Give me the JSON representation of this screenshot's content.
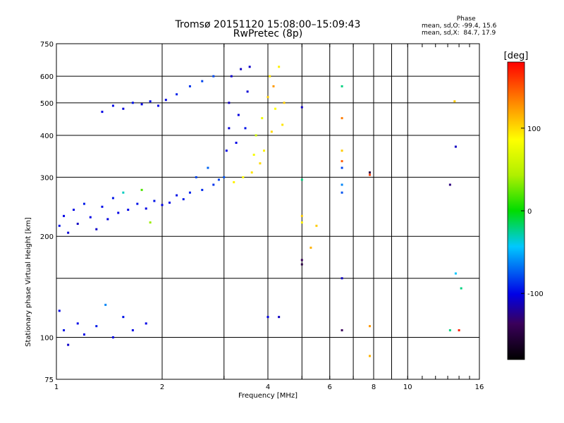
{
  "header": {
    "title_line1": "Tromsø 20151120 15:08:00–15:09:43",
    "title_line2": "RwPretec (8p)"
  },
  "phase_info": {
    "heading": "Phase",
    "line_o": "mean, sd,O: -99.4, 15.6",
    "line_x": "mean, sd,X:  84.7, 17.9"
  },
  "colorbar": {
    "unit": "[deg]",
    "ticks": [
      "100",
      "0",
      "-100"
    ],
    "tick_values": [
      100,
      0,
      -100
    ],
    "range": [
      -180,
      180
    ]
  },
  "chart_data": {
    "type": "scatter",
    "xlabel": "Frequency [MHz]",
    "ylabel": "Stationary phase Virtual Height [km]",
    "xscale": "log",
    "yscale": "log",
    "xlim": [
      1,
      16
    ],
    "ylim": [
      75,
      750
    ],
    "x_ticks": [
      1,
      2,
      4,
      6,
      8,
      10,
      16
    ],
    "x_tick_labels": [
      "1",
      "2",
      "4",
      "6",
      "8",
      "10",
      "16"
    ],
    "x_minor_ticks": [
      3,
      5,
      7,
      9
    ],
    "y_ticks": [
      75,
      100,
      200,
      300,
      400,
      500,
      600,
      750
    ],
    "y_tick_labels": [
      "75",
      "100",
      "200",
      "300",
      "400",
      "500",
      "600",
      "750"
    ],
    "y_minor_ticks": [
      150
    ],
    "grid": true,
    "points": [
      {
        "x": 1.02,
        "y": 215,
        "phase": -95
      },
      {
        "x": 1.05,
        "y": 230,
        "phase": -100
      },
      {
        "x": 1.08,
        "y": 205,
        "phase": -105
      },
      {
        "x": 1.12,
        "y": 240,
        "phase": -98
      },
      {
        "x": 1.15,
        "y": 218,
        "phase": -110
      },
      {
        "x": 1.2,
        "y": 250,
        "phase": -92
      },
      {
        "x": 1.25,
        "y": 228,
        "phase": -100
      },
      {
        "x": 1.3,
        "y": 210,
        "phase": -108
      },
      {
        "x": 1.35,
        "y": 245,
        "phase": -96
      },
      {
        "x": 1.4,
        "y": 225,
        "phase": -102
      },
      {
        "x": 1.45,
        "y": 260,
        "phase": -94
      },
      {
        "x": 1.5,
        "y": 235,
        "phase": -100
      },
      {
        "x": 1.55,
        "y": 270,
        "phase": -30
      },
      {
        "x": 1.6,
        "y": 240,
        "phase": -98
      },
      {
        "x": 1.7,
        "y": 250,
        "phase": -95
      },
      {
        "x": 1.75,
        "y": 275,
        "phase": 20
      },
      {
        "x": 1.8,
        "y": 242,
        "phase": -100
      },
      {
        "x": 1.85,
        "y": 220,
        "phase": 40
      },
      {
        "x": 1.9,
        "y": 255,
        "phase": -95
      },
      {
        "x": 2.0,
        "y": 248,
        "phase": -100
      },
      {
        "x": 2.1,
        "y": 252,
        "phase": -98
      },
      {
        "x": 2.2,
        "y": 265,
        "phase": -95
      },
      {
        "x": 2.3,
        "y": 258,
        "phase": -92
      },
      {
        "x": 2.4,
        "y": 270,
        "phase": -90
      },
      {
        "x": 2.5,
        "y": 300,
        "phase": -80
      },
      {
        "x": 2.6,
        "y": 275,
        "phase": -88
      },
      {
        "x": 2.7,
        "y": 320,
        "phase": -70
      },
      {
        "x": 2.8,
        "y": 285,
        "phase": -85
      },
      {
        "x": 2.9,
        "y": 295,
        "phase": -80
      },
      {
        "x": 3.0,
        "y": 300,
        "phase": -75
      },
      {
        "x": 3.05,
        "y": 360,
        "phase": -100
      },
      {
        "x": 3.1,
        "y": 420,
        "phase": -105
      },
      {
        "x": 3.1,
        "y": 500,
        "phase": -110
      },
      {
        "x": 3.15,
        "y": 600,
        "phase": -108
      },
      {
        "x": 3.2,
        "y": 290,
        "phase": 95
      },
      {
        "x": 3.25,
        "y": 380,
        "phase": -100
      },
      {
        "x": 3.3,
        "y": 460,
        "phase": -102
      },
      {
        "x": 3.35,
        "y": 630,
        "phase": -110
      },
      {
        "x": 3.4,
        "y": 300,
        "phase": 90
      },
      {
        "x": 3.45,
        "y": 420,
        "phase": -95
      },
      {
        "x": 3.5,
        "y": 540,
        "phase": -105
      },
      {
        "x": 3.55,
        "y": 640,
        "phase": -108
      },
      {
        "x": 3.6,
        "y": 310,
        "phase": 100
      },
      {
        "x": 3.65,
        "y": 350,
        "phase": 85
      },
      {
        "x": 3.7,
        "y": 400,
        "phase": 60
      },
      {
        "x": 3.8,
        "y": 330,
        "phase": 105
      },
      {
        "x": 3.85,
        "y": 450,
        "phase": 80
      },
      {
        "x": 3.9,
        "y": 360,
        "phase": 95
      },
      {
        "x": 4.0,
        "y": 520,
        "phase": 110
      },
      {
        "x": 4.05,
        "y": 600,
        "phase": 100
      },
      {
        "x": 4.1,
        "y": 410,
        "phase": 105
      },
      {
        "x": 4.15,
        "y": 560,
        "phase": 130
      },
      {
        "x": 4.2,
        "y": 480,
        "phase": 90
      },
      {
        "x": 4.3,
        "y": 640,
        "phase": 95
      },
      {
        "x": 4.4,
        "y": 430,
        "phase": 100
      },
      {
        "x": 4.45,
        "y": 500,
        "phase": 110
      },
      {
        "x": 1.35,
        "y": 470,
        "phase": -100
      },
      {
        "x": 1.45,
        "y": 490,
        "phase": -98
      },
      {
        "x": 1.55,
        "y": 480,
        "phase": -102
      },
      {
        "x": 1.65,
        "y": 500,
        "phase": -95
      },
      {
        "x": 1.75,
        "y": 495,
        "phase": -100
      },
      {
        "x": 1.85,
        "y": 505,
        "phase": -97
      },
      {
        "x": 1.95,
        "y": 490,
        "phase": -99
      },
      {
        "x": 2.05,
        "y": 510,
        "phase": -100
      },
      {
        "x": 2.2,
        "y": 530,
        "phase": -90
      },
      {
        "x": 2.4,
        "y": 560,
        "phase": -85
      },
      {
        "x": 2.6,
        "y": 580,
        "phase": -80
      },
      {
        "x": 2.8,
        "y": 600,
        "phase": -78
      },
      {
        "x": 1.02,
        "y": 120,
        "phase": -100
      },
      {
        "x": 1.05,
        "y": 105,
        "phase": -95
      },
      {
        "x": 1.08,
        "y": 95,
        "phase": -108
      },
      {
        "x": 1.15,
        "y": 110,
        "phase": -98
      },
      {
        "x": 1.2,
        "y": 102,
        "phase": -100
      },
      {
        "x": 1.3,
        "y": 108,
        "phase": -92
      },
      {
        "x": 1.38,
        "y": 125,
        "phase": -60
      },
      {
        "x": 1.45,
        "y": 100,
        "phase": -100
      },
      {
        "x": 1.55,
        "y": 115,
        "phase": -95
      },
      {
        "x": 1.65,
        "y": 105,
        "phase": -98
      },
      {
        "x": 1.8,
        "y": 110,
        "phase": -100
      },
      {
        "x": 4.3,
        "y": 115,
        "phase": -110
      },
      {
        "x": 4.0,
        "y": 115,
        "phase": -100
      },
      {
        "x": 5.0,
        "y": 485,
        "phase": -110
      },
      {
        "x": 5.0,
        "y": 295,
        "phase": -20
      },
      {
        "x": 5.0,
        "y": 230,
        "phase": 110
      },
      {
        "x": 5.0,
        "y": 220,
        "phase": 95
      },
      {
        "x": 5.0,
        "y": 170,
        "phase": -140
      },
      {
        "x": 5.0,
        "y": 165,
        "phase": -150
      },
      {
        "x": 5.3,
        "y": 185,
        "phase": 120
      },
      {
        "x": 5.5,
        "y": 215,
        "phase": 110
      },
      {
        "x": 6.5,
        "y": 560,
        "phase": -20
      },
      {
        "x": 6.5,
        "y": 450,
        "phase": 140
      },
      {
        "x": 6.5,
        "y": 360,
        "phase": 110
      },
      {
        "x": 6.5,
        "y": 335,
        "phase": 150
      },
      {
        "x": 6.5,
        "y": 320,
        "phase": -80
      },
      {
        "x": 6.5,
        "y": 285,
        "phase": -60
      },
      {
        "x": 6.5,
        "y": 270,
        "phase": -75
      },
      {
        "x": 6.5,
        "y": 150,
        "phase": -110
      },
      {
        "x": 6.5,
        "y": 105,
        "phase": -140
      },
      {
        "x": 7.8,
        "y": 310,
        "phase": -150
      },
      {
        "x": 7.8,
        "y": 305,
        "phase": 160
      },
      {
        "x": 7.8,
        "y": 108,
        "phase": 130
      },
      {
        "x": 7.8,
        "y": 88,
        "phase": 120
      },
      {
        "x": 13.2,
        "y": 285,
        "phase": -130
      },
      {
        "x": 13.2,
        "y": 105,
        "phase": -20
      },
      {
        "x": 13.7,
        "y": 370,
        "phase": -110
      },
      {
        "x": 13.6,
        "y": 505,
        "phase": 110
      },
      {
        "x": 13.7,
        "y": 155,
        "phase": -40
      },
      {
        "x": 14.2,
        "y": 140,
        "phase": -20
      },
      {
        "x": 14.0,
        "y": 105,
        "phase": 170
      }
    ]
  }
}
